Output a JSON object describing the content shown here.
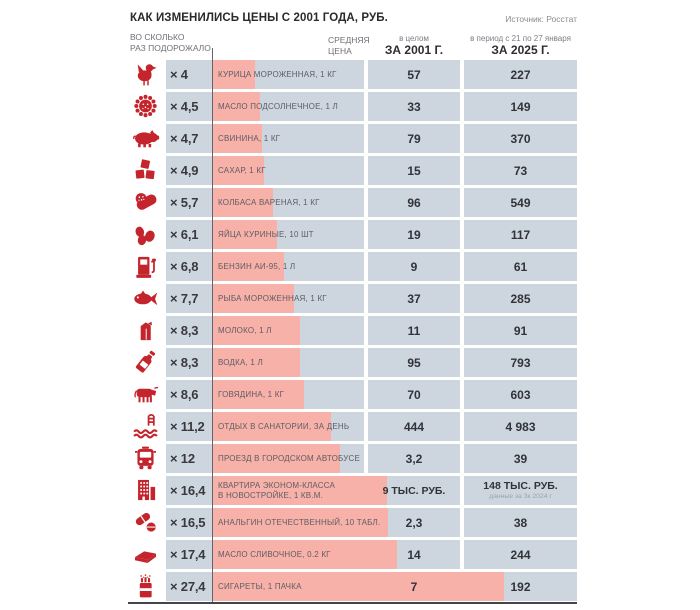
{
  "title": "КАК ИЗМЕНИЛИСЬ ЦЕНЫ С 2001 ГОДА, РУБ.",
  "source": "Источник: Росстат",
  "columns": {
    "multiplier_line1": "ВО СКОЛЬКО",
    "multiplier_line2": "РАЗ ПОДОРОЖАЛО",
    "avg_price_line1": "СРЕДНЯЯ",
    "avg_price_line2": "ЦЕНА",
    "y2001_note": "в целом",
    "y2001_label": "ЗА 2001 Г.",
    "y2025_note": "в период с 21 по 27 января",
    "y2025_label": "ЗА 2025 Г."
  },
  "colors": {
    "accent_red": "#c4242c",
    "bar_pink": "#f7b1a8",
    "cell_gray": "#cdd5df",
    "text_dark": "#313338"
  },
  "chart_data": {
    "type": "bar",
    "title": "КАК ИЗМЕНИЛИСЬ ЦЕНЫ С 2001 ГОДА, РУБ.",
    "bar_value_label": "ВО СКОЛЬКО РАЗ ПОДОРОЖАЛО",
    "legend_position": "none",
    "items": [
      {
        "icon": "chicken-icon",
        "multiplier": 4,
        "multiplier_label": "× 4",
        "name": "КУРИЦА МОРОЖЕННАЯ, 1 КГ",
        "price_2001": "57",
        "price_2025": "227"
      },
      {
        "icon": "sunflower-icon",
        "multiplier": 4.5,
        "multiplier_label": "× 4,5",
        "name": "МАСЛО ПОДСОЛНЕЧНОЕ, 1 Л",
        "price_2001": "33",
        "price_2025": "149"
      },
      {
        "icon": "pig-icon",
        "multiplier": 4.7,
        "multiplier_label": "× 4,7",
        "name": "СВИНИНА, 1 КГ",
        "price_2001": "79",
        "price_2025": "370"
      },
      {
        "icon": "sugar-icon",
        "multiplier": 4.9,
        "multiplier_label": "× 4,9",
        "name": "САХАР, 1 КГ",
        "price_2001": "15",
        "price_2025": "73"
      },
      {
        "icon": "sausage-icon",
        "multiplier": 5.7,
        "multiplier_label": "× 5,7",
        "name": "КОЛБАСА ВАРЕНАЯ, 1 КГ",
        "price_2001": "96",
        "price_2025": "549"
      },
      {
        "icon": "eggs-icon",
        "multiplier": 6.1,
        "multiplier_label": "× 6,1",
        "name": "ЯЙЦА КУРИНЫЕ, 10 ШТ",
        "price_2001": "19",
        "price_2025": "117"
      },
      {
        "icon": "fuel-pump-icon",
        "multiplier": 6.8,
        "multiplier_label": "× 6,8",
        "name": "БЕНЗИН АИ-95, 1 Л",
        "price_2001": "9",
        "price_2025": "61"
      },
      {
        "icon": "fish-icon",
        "multiplier": 7.7,
        "multiplier_label": "× 7,7",
        "name": "РЫБА МОРОЖЕННАЯ, 1 КГ",
        "price_2001": "37",
        "price_2025": "285"
      },
      {
        "icon": "milk-icon",
        "multiplier": 8.3,
        "multiplier_label": "× 8,3",
        "name": "МОЛОКО, 1 Л",
        "price_2001": "11",
        "price_2025": "91"
      },
      {
        "icon": "vodka-icon",
        "multiplier": 8.3,
        "multiplier_label": "× 8,3",
        "name": "ВОДКА, 1 Л",
        "price_2001": "95",
        "price_2025": "793"
      },
      {
        "icon": "cow-icon",
        "multiplier": 8.6,
        "multiplier_label": "× 8,6",
        "name": "ГОВЯДИНА, 1 КГ",
        "price_2001": "70",
        "price_2025": "603"
      },
      {
        "icon": "sanatorium-icon",
        "multiplier": 11.2,
        "multiplier_label": "× 11,2",
        "name": "ОТДЫХ В САНАТОРИИ, ЗА ДЕНЬ",
        "price_2001": "444",
        "price_2025": "4 983"
      },
      {
        "icon": "bus-icon",
        "multiplier": 12,
        "multiplier_label": "× 12",
        "name": "ПРОЕЗД В ГОРОДСКОМ АВТОБУСЕ",
        "price_2001": "3,2",
        "price_2025": "39"
      },
      {
        "icon": "building-icon",
        "multiplier": 16.4,
        "multiplier_label": "× 16,4",
        "name": "КВАРТИРА ЭКОНОМ-КЛАССА",
        "name2": "В НОВОСТРОЙКЕ, 1 КВ.М.",
        "price_2001": "9 ТЫС. РУБ.",
        "price_2025": "148 ТЫС. РУБ.",
        "price_2025_note": "данные за 3к 2024 г"
      },
      {
        "icon": "pills-icon",
        "multiplier": 16.5,
        "multiplier_label": "× 16,5",
        "name": "АНАЛЬГИН ОТЕЧЕСТВЕННЫЙ, 10 ТАБЛ.",
        "price_2001": "2,3",
        "price_2025": "38"
      },
      {
        "icon": "butter-icon",
        "multiplier": 17.4,
        "multiplier_label": "× 17,4",
        "name": "МАСЛО СЛИВОЧНОЕ, 0.2 КГ",
        "price_2001": "14",
        "price_2025": "244"
      },
      {
        "icon": "cigarettes-icon",
        "multiplier": 27.4,
        "multiplier_label": "× 27,4",
        "name": "СИГАРЕТЫ, 1 ПАЧКА",
        "price_2001": "7",
        "price_2025": "192"
      }
    ]
  }
}
